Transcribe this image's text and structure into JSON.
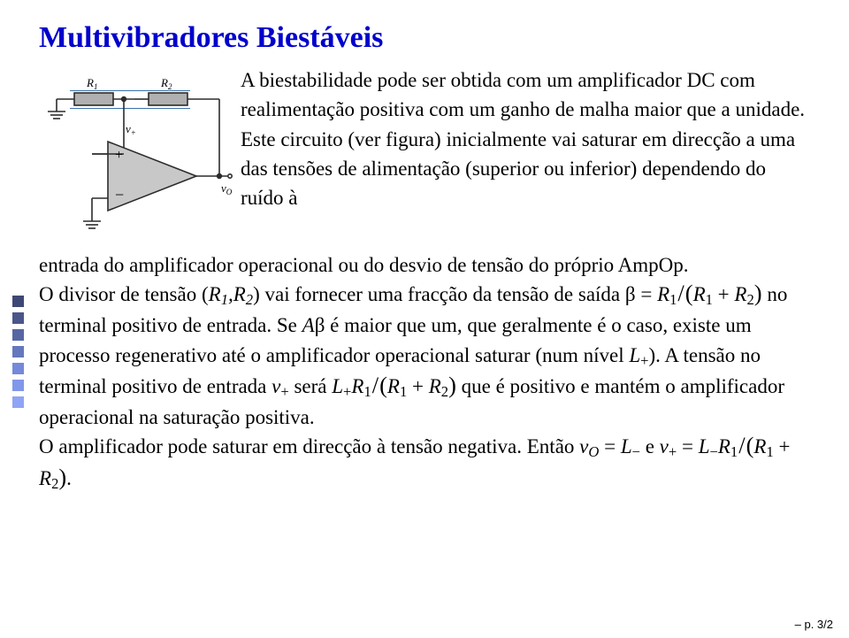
{
  "title": "Multivibradores Biestáveis",
  "title_color": "#0000cd",
  "page_number": "– p. 3/2",
  "bullets": {
    "count": 7,
    "colors": [
      "#3e4874",
      "#4a568a",
      "#5766a3",
      "#6577bd",
      "#7489d9",
      "#8197ea",
      "#8fa4f5"
    ]
  },
  "circuit": {
    "R1": "R₁",
    "R2": "R₂",
    "v_plus": "v₊",
    "plus": "+",
    "minus": "−",
    "vO": "vO",
    "wire_color": "#2c2c2c",
    "resistor_fill": "#b0b0b0",
    "opamp_fill": "#c8c8c8",
    "label_fontsize": 13
  },
  "text": {
    "intro1": "A biestabilidade pode ser obtida com um amplificador DC com realimentação positiva com um ganho de malha maior que a unidade.",
    "intro2": "Este circuito (ver figura) inicialmente vai saturar em direcção a uma das tensões de alimentação (superior ou inferior) dependendo do ruído à",
    "p1a": "entrada do amplificador operacional ou do desvio de tensão do próprio AmpOp.",
    "p2a": "O divisor de tensão (",
    "p2b": ") vai fornecer uma fracção da tensão de saída ",
    "p2c": " no terminal positivo de entrada. Se ",
    "p2d": " é maior que um, que geralmente é o caso, existe um processo regenerativo até o amplificador operacional saturar (num nível ",
    "p2e": "). A tensão no terminal positivo de entrada ",
    "p2f": " será ",
    "p2g": " que é positivo e mantém o amplificador operacional na saturação positiva.",
    "p3a": "O amplificador pode saturar em direcção à tensão negativa. Então ",
    "p3b": " e "
  },
  "math": {
    "R1R2": "R₁, R₂",
    "beta_eq": "β = R₁ / (R₁ + R₂)",
    "Abeta": "Aβ",
    "Lplus": "L₊",
    "vplus": "v₊",
    "LplusR1": "L₊R₁ / (R₁ + R₂)",
    "vO_eq_Lminus": "vO = L₋",
    "vplus_eq": "v₊ = L₋R₁ / (R₁ + R₂)."
  }
}
